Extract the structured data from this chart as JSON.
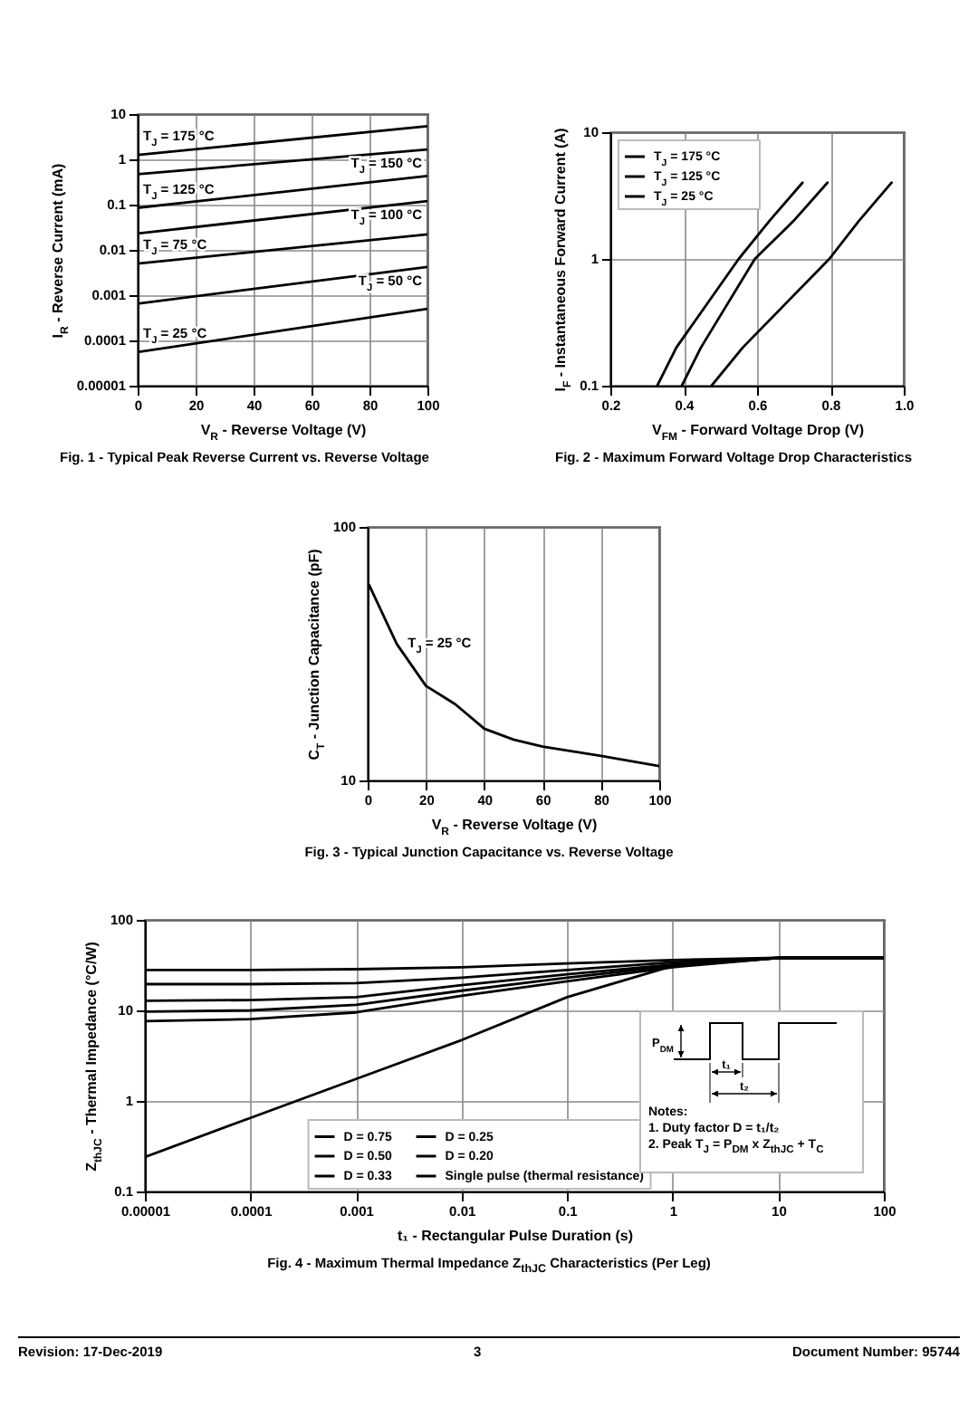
{
  "chart_data": [
    {
      "type": "line",
      "title": "Fig. 1 - Typical Peak Reverse Current vs. Reverse Voltage",
      "xlabel": "V$_{R}$ - Reverse Voltage (V)",
      "ylabel": "I$_{R}$ - Reverse Current (mA)",
      "log": true,
      "grid": true,
      "x": [
        0,
        100
      ],
      "xlim": [
        0,
        100
      ],
      "xticks": [
        0,
        20,
        40,
        60,
        80,
        100
      ],
      "ylim": [
        1e-05,
        10
      ],
      "yticks": [
        {
          "value": 1e-05,
          "label": "0.00001"
        },
        0.0001,
        0.001,
        0.01,
        0.1,
        1,
        10
      ],
      "series": [
        {
          "name": "T$_{J}$ = 175 °C",
          "color": "#000000",
          "values": [
            1.25,
            5.4
          ]
        },
        {
          "name": "T$_{J}$ = 150 °C",
          "color": "#000000",
          "values": [
            0.47,
            1.65
          ]
        },
        {
          "name": "T$_{J}$ = 125 °C",
          "color": "#000000",
          "values": [
            0.085,
            0.43
          ]
        },
        {
          "name": "T$_{J}$ = 100 °C",
          "color": "#000000",
          "values": [
            0.023,
            0.12
          ]
        },
        {
          "name": "T$_{J}$ = 75 °C",
          "color": "#000000",
          "values": [
            0.005,
            0.022
          ]
        },
        {
          "name": "T$_{J}$ = 50 °C",
          "color": "#000000",
          "values": [
            0.00065,
            0.0042
          ]
        },
        {
          "name": "T$_{J}$ = 25 °C",
          "color": "#000000",
          "values": [
            5.5e-05,
            0.0005
          ]
        }
      ]
    },
    {
      "type": "line",
      "title": "Fig. 2 - Maximum Forward Voltage Drop Characteristics",
      "xlabel": "V$_{FM}$ - Forward Voltage Drop (V)",
      "ylabel": "I$_{F}$ - Instantaneous Forward Current (A)",
      "log": true,
      "grid": true,
      "legend": "top left",
      "xlim": [
        0.2,
        1.0
      ],
      "xticks": [
        0.2,
        0.4,
        0.6,
        0.8,
        {
          "value": 1,
          "label": "1.0"
        }
      ],
      "ylim": [
        0.1,
        10
      ],
      "yticks": [
        0.1,
        1,
        10
      ],
      "series": [
        {
          "name": "T$_{J}$ = 175 °C",
          "color": "#000000",
          "x": [
            0.328,
            0.38,
            0.55,
            0.634,
            0.724
          ],
          "values": [
            0.1,
            0.2,
            1,
            2,
            4
          ]
        },
        {
          "name": "T$_{J}$ = 125 °C",
          "color": "#000000",
          "x": [
            0.395,
            0.447,
            0.594,
            0.7,
            0.792
          ],
          "values": [
            0.1,
            0.2,
            1,
            2,
            4
          ]
        },
        {
          "name": "T$_{J}$ = 25 °C",
          "color": "#000000",
          "x": [
            0.476,
            0.561,
            0.797,
            0.878,
            0.967
          ],
          "values": [
            0.1,
            0.2,
            1,
            2,
            4
          ]
        }
      ]
    },
    {
      "type": "line",
      "title": "Fig. 3 - Typical Junction Capacitance vs. Reverse Voltage",
      "xlabel": "V$_{R}$ - Reverse Voltage (V)",
      "ylabel": "C$_{T}$ - Junction Capacitance (pF)",
      "log": true,
      "grid": true,
      "x": [
        0.5,
        10,
        20,
        30,
        40,
        50,
        60,
        80,
        100
      ],
      "xlim": [
        0,
        100
      ],
      "xticks": [
        0,
        20,
        40,
        60,
        80,
        100
      ],
      "ylim": [
        10,
        100
      ],
      "yticks": [
        10,
        100
      ],
      "series": [
        {
          "name": "T$_{J}$ = 25 °C",
          "color": "#000000",
          "values": [
            59,
            34.5,
            23.6,
            20,
            16,
            14.5,
            13.6,
            12.5,
            11.4
          ]
        }
      ]
    },
    {
      "type": "line",
      "title": "Fig. 4 - Maximum Thermal Impedance Z$_{thJC}$ Characteristics (Per Leg)",
      "xlabel": "t₁ - Rectangular Pulse Duration (s)",
      "ylabel": "Z$_{thJC}$ - Thermal Impedance (°C/W)",
      "log": "xy",
      "grid": true,
      "legend": "bottom",
      "x": [
        1e-05,
        0.0001,
        0.001,
        0.01,
        0.1,
        1,
        10,
        100
      ],
      "xlim": [
        1e-05,
        100
      ],
      "xticks": [
        {
          "value": 1e-05,
          "label": "0.00001"
        },
        0.0001,
        0.001,
        0.01,
        0.1,
        1,
        10,
        100
      ],
      "ylim": [
        0.1,
        100
      ],
      "yticks": [
        0.1,
        1,
        10,
        100
      ],
      "series": [
        {
          "name": "D = 0.75",
          "color": "#000000",
          "values": [
            28,
            28,
            28.5,
            30,
            33,
            36,
            38,
            38
          ]
        },
        {
          "name": "D = 0.50",
          "color": "#000000",
          "values": [
            19.5,
            19.5,
            20,
            23,
            28,
            34,
            38,
            38
          ]
        },
        {
          "name": "D = 0.33",
          "color": "#000000",
          "values": [
            12.8,
            13,
            14,
            19,
            25,
            32,
            38,
            38
          ]
        },
        {
          "name": "D = 0.25",
          "color": "#000000",
          "values": [
            9.7,
            10,
            11.5,
            16.5,
            23,
            31,
            38,
            38
          ]
        },
        {
          "name": "D = 0.20",
          "color": "#000000",
          "values": [
            7.6,
            8,
            9.5,
            14.5,
            21,
            30,
            38,
            38
          ]
        },
        {
          "name": "Single pulse (thermal resistance)",
          "color": "#000000",
          "values": [
            0.24,
            0.65,
            1.75,
            4.7,
            14,
            31,
            38,
            38
          ]
        }
      ],
      "annotations": [
        "Notes:",
        "1. Duty factor D = t₁/t₂",
        "2. Peak T$_{J}$ = P$_{DM}$ x Z$_{thJC}$ + T$_{C}$",
        "P$_{DM}$",
        "t₁",
        "t₂",
        "Revision: 17-Dec-2019",
        "3",
        "Document Number: 95744"
      ]
    }
  ]
}
